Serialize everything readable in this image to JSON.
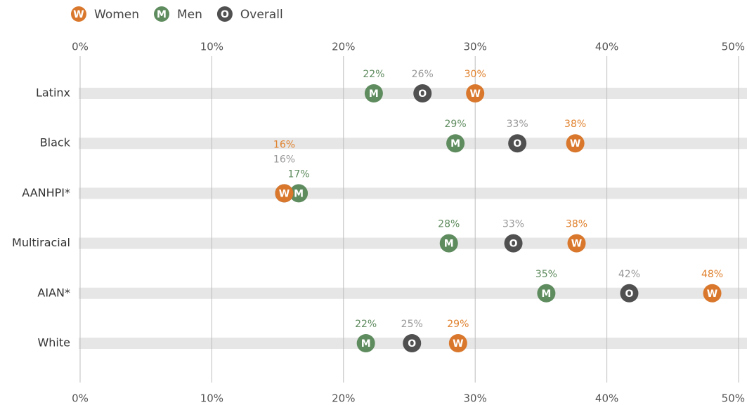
{
  "chart_data": {
    "type": "dot",
    "categories": [
      "Latinx",
      "Black",
      "AANHPI*",
      "Multiracial",
      "AIAN*",
      "White"
    ],
    "series": [
      {
        "name": "Women",
        "marker": "W",
        "color": "#d9782d",
        "label_color": "#e0822f",
        "values": [
          30.0,
          37.6,
          15.5,
          37.7,
          48.0,
          28.7
        ],
        "value_labels": [
          "30%",
          "38%",
          "16%",
          "38%",
          "48%",
          "29%"
        ]
      },
      {
        "name": "Men",
        "marker": "M",
        "color": "#5f8c5f",
        "label_color": "#5f8c5f",
        "values": [
          22.3,
          28.5,
          16.6,
          28.0,
          35.4,
          21.7
        ],
        "value_labels": [
          "22%",
          "29%",
          "17%",
          "28%",
          "35%",
          "22%"
        ]
      },
      {
        "name": "Overall",
        "marker": "O",
        "color": "#505050",
        "label_color": "#999999",
        "values": [
          26.0,
          33.2,
          15.5,
          32.9,
          41.7,
          25.2
        ],
        "value_labels": [
          "26%",
          "33%",
          "16%",
          "33%",
          "42%",
          "25%"
        ]
      }
    ],
    "xlim": [
      0,
      50
    ],
    "xticks": [
      {
        "value": 0,
        "label": "0%"
      },
      {
        "value": 10,
        "label": "10%"
      },
      {
        "value": 20,
        "label": "20%"
      },
      {
        "value": 30,
        "label": "30%"
      },
      {
        "value": 40,
        "label": "40%"
      },
      {
        "value": 50,
        "label": "50%"
      }
    ],
    "grid": true,
    "legend": "top-left"
  }
}
